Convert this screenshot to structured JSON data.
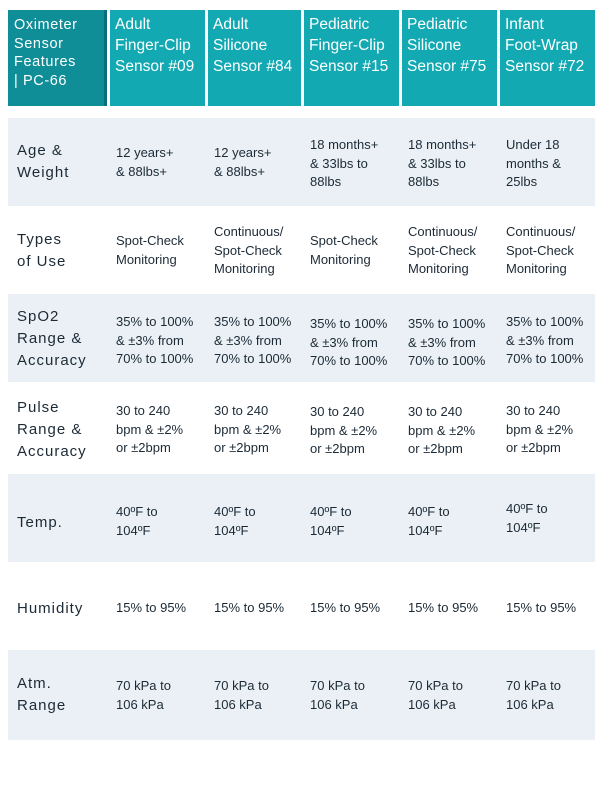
{
  "table": {
    "corner_header": "Oximeter\nSensor\nFeatures\n| PC-66",
    "columns": [
      "Adult\nFinger-Clip\nSensor #09",
      "Adult\nSilicone\nSensor #84",
      "Pediatric\nFinger-Clip\nSensor #15",
      "Pediatric\nSilicone\nSensor #75",
      "Infant\nFoot-Wrap\nSensor #72"
    ],
    "rows": [
      {
        "label": "Age &\nWeight",
        "cells": [
          "12 years+\n& 88lbs+",
          "12 years+\n& 88lbs+",
          "18 months+\n& 33lbs to\n88lbs",
          "18 months+\n& 33lbs to\n88lbs",
          "Under 18\nmonths &\n25lbs"
        ]
      },
      {
        "label": "Types\nof Use",
        "cells": [
          "Spot-Check\nMonitoring",
          "Continuous/\nSpot-Check\nMonitoring",
          "Spot-Check\nMonitoring",
          "Continuous/\nSpot-Check\nMonitoring",
          "Continuous/\nSpot-Check\nMonitoring"
        ]
      },
      {
        "label": "SpO2\nRange &\nAccuracy",
        "cells": [
          "35% to 100%\n& ±3% from\n70% to 100%",
          "35% to 100%\n& ±3% from\n70% to 100%",
          "35% to 100%\n& ±3% from\n70% to 100%",
          "35% to 100%\n& ±3% from\n70% to 100%",
          "35% to 100%\n& ±3% from\n70% to 100%"
        ]
      },
      {
        "label": "Pulse\nRange &\nAccuracy",
        "cells": [
          "30 to 240\nbpm & ±2%\nor ±2bpm",
          "30 to 240\nbpm & ±2%\nor ±2bpm",
          "30 to 240\nbpm & ±2%\nor ±2bpm",
          "30 to 240\nbpm & ±2%\nor ±2bpm",
          "30 to 240\nbpm & ±2%\nor ±2bpm"
        ]
      },
      {
        "label": "Temp.",
        "cells": [
          "40ºF to\n104ºF",
          "40ºF to\n104ºF",
          "40ºF to\n104ºF",
          "40ºF to\n104ºF",
          "40ºF to\n104ºF"
        ]
      },
      {
        "label": "Humidity",
        "cells": [
          "15% to 95%",
          "15% to 95%",
          "15% to 95%",
          "15% to 95%",
          "15% to 95%"
        ]
      },
      {
        "label": "Atm.\nRange",
        "cells": [
          "70 kPa to\n106 kPa",
          "70 kPa to\n106 kPa",
          "70 kPa to\n106 kPa",
          "70 kPa to\n106 kPa",
          "70 kPa to\n106 kPa"
        ]
      }
    ]
  },
  "colors": {
    "header": "#13a9b3",
    "corner": "#0f8e98",
    "row_shade": "#eaf0f5",
    "text": "#1c2a36"
  }
}
